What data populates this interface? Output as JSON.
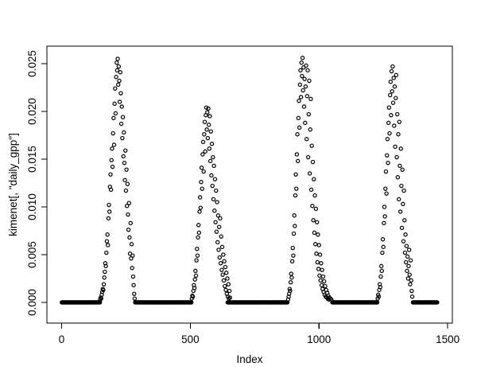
{
  "figure": {
    "background_color": "#ffffff",
    "frame_color": "#000000",
    "point_color": "#000000"
  },
  "chart_data": {
    "type": "scatter",
    "title": "",
    "xlabel": "Index",
    "ylabel": "kimenet[, \"daily_gpp\"]",
    "marker": "open-circle",
    "grid": false,
    "legend": false,
    "x_ticks": [
      0,
      500,
      1000,
      1500
    ],
    "x_tick_labels": [
      "0",
      "500",
      "1000",
      "1500"
    ],
    "y_ticks": [
      0.0,
      0.005,
      0.01,
      0.015,
      0.02,
      0.025
    ],
    "y_tick_labels": [
      "0.000",
      "0.005",
      "0.010",
      "0.015",
      "0.020",
      "0.025"
    ],
    "xlim": [
      -57,
      1518
    ],
    "ylim": [
      -0.00217,
      0.02683
    ],
    "index_range": [
      1,
      1460
    ],
    "zero_value": 0.0,
    "zero_run_step": 2,
    "zero_runs": [
      [
        1,
        149
      ],
      [
        286,
        504
      ],
      [
        645,
        878
      ],
      [
        1052,
        1226
      ],
      [
        1365,
        1460
      ]
    ],
    "points": [
      [
        150,
        0.0003
      ],
      [
        152,
        0.0005
      ],
      [
        154,
        0.0004
      ],
      [
        156,
        0.0008
      ],
      [
        158,
        0.0011
      ],
      [
        160,
        0.0014
      ],
      [
        162,
        0.0013
      ],
      [
        164,
        0.0019
      ],
      [
        166,
        0.0026
      ],
      [
        168,
        0.0032
      ],
      [
        170,
        0.0041
      ],
      [
        172,
        0.0038
      ],
      [
        174,
        0.0052
      ],
      [
        176,
        0.0064
      ],
      [
        178,
        0.0071
      ],
      [
        180,
        0.006
      ],
      [
        182,
        0.0088
      ],
      [
        184,
        0.0102
      ],
      [
        186,
        0.0095
      ],
      [
        188,
        0.0121
      ],
      [
        190,
        0.0134
      ],
      [
        192,
        0.0118
      ],
      [
        194,
        0.0149
      ],
      [
        196,
        0.0161
      ],
      [
        198,
        0.0142
      ],
      [
        200,
        0.0177
      ],
      [
        202,
        0.0193
      ],
      [
        204,
        0.0165
      ],
      [
        206,
        0.0208
      ],
      [
        208,
        0.0224
      ],
      [
        210,
        0.0198
      ],
      [
        212,
        0.0236
      ],
      [
        214,
        0.0251
      ],
      [
        216,
        0.0243
      ],
      [
        218,
        0.0255
      ],
      [
        220,
        0.0228
      ],
      [
        222,
        0.0247
      ],
      [
        224,
        0.0232
      ],
      [
        226,
        0.021
      ],
      [
        228,
        0.0241
      ],
      [
        230,
        0.0219
      ],
      [
        232,
        0.0187
      ],
      [
        234,
        0.0205
      ],
      [
        236,
        0.0172
      ],
      [
        238,
        0.0194
      ],
      [
        240,
        0.0153
      ],
      [
        242,
        0.0178
      ],
      [
        244,
        0.0146
      ],
      [
        246,
        0.0128
      ],
      [
        248,
        0.0159
      ],
      [
        250,
        0.0117
      ],
      [
        252,
        0.0139
      ],
      [
        254,
        0.0101
      ],
      [
        256,
        0.0124
      ],
      [
        258,
        0.0092
      ],
      [
        260,
        0.0076
      ],
      [
        262,
        0.0104
      ],
      [
        264,
        0.0068
      ],
      [
        266,
        0.0051
      ],
      [
        268,
        0.0083
      ],
      [
        270,
        0.0046
      ],
      [
        272,
        0.0061
      ],
      [
        274,
        0.0036
      ],
      [
        276,
        0.0049
      ],
      [
        278,
        0.0027
      ],
      [
        280,
        0.0018
      ],
      [
        282,
        0.0009
      ],
      [
        284,
        0.0004
      ],
      [
        506,
        0.0004
      ],
      [
        508,
        0.0007
      ],
      [
        510,
        0.0006
      ],
      [
        512,
        0.0012
      ],
      [
        514,
        0.0018
      ],
      [
        516,
        0.0015
      ],
      [
        518,
        0.0024
      ],
      [
        520,
        0.0033
      ],
      [
        522,
        0.0028
      ],
      [
        524,
        0.0044
      ],
      [
        526,
        0.0056
      ],
      [
        528,
        0.0049
      ],
      [
        530,
        0.0068
      ],
      [
        532,
        0.0081
      ],
      [
        534,
        0.0073
      ],
      [
        536,
        0.0095
      ],
      [
        538,
        0.011
      ],
      [
        540,
        0.0099
      ],
      [
        542,
        0.0126
      ],
      [
        544,
        0.0141
      ],
      [
        546,
        0.0119
      ],
      [
        548,
        0.0155
      ],
      [
        550,
        0.0168
      ],
      [
        552,
        0.0137
      ],
      [
        554,
        0.0176
      ],
      [
        556,
        0.0189
      ],
      [
        558,
        0.0158
      ],
      [
        560,
        0.0196
      ],
      [
        562,
        0.0204
      ],
      [
        564,
        0.0181
      ],
      [
        566,
        0.0199
      ],
      [
        568,
        0.0172
      ],
      [
        570,
        0.0203
      ],
      [
        572,
        0.0186
      ],
      [
        574,
        0.0161
      ],
      [
        576,
        0.0195
      ],
      [
        578,
        0.0148
      ],
      [
        580,
        0.0179
      ],
      [
        582,
        0.0133
      ],
      [
        584,
        0.0166
      ],
      [
        586,
        0.0122
      ],
      [
        588,
        0.0152
      ],
      [
        590,
        0.0108
      ],
      [
        592,
        0.0143
      ],
      [
        594,
        0.0096
      ],
      [
        596,
        0.0129
      ],
      [
        598,
        0.0084
      ],
      [
        600,
        0.0117
      ],
      [
        602,
        0.0074
      ],
      [
        604,
        0.0105
      ],
      [
        606,
        0.0063
      ],
      [
        608,
        0.0091
      ],
      [
        610,
        0.0055
      ],
      [
        612,
        0.0079
      ],
      [
        614,
        0.0047
      ],
      [
        616,
        0.0088
      ],
      [
        618,
        0.0041
      ],
      [
        620,
        0.0069
      ],
      [
        622,
        0.0034
      ],
      [
        624,
        0.0058
      ],
      [
        626,
        0.0029
      ],
      [
        628,
        0.005
      ],
      [
        630,
        0.0023
      ],
      [
        632,
        0.0043
      ],
      [
        634,
        0.0017
      ],
      [
        636,
        0.0037
      ],
      [
        638,
        0.0013
      ],
      [
        640,
        0.0031
      ],
      [
        642,
        0.0009
      ],
      [
        644,
        0.0025
      ],
      [
        646,
        0.0006
      ],
      [
        648,
        0.0019
      ],
      [
        650,
        0.0004
      ],
      [
        652,
        0.0012
      ],
      [
        654,
        0.0005
      ],
      [
        880,
        0.0003
      ],
      [
        882,
        0.0006
      ],
      [
        884,
        0.0009
      ],
      [
        886,
        0.0014
      ],
      [
        888,
        0.0012
      ],
      [
        890,
        0.0021
      ],
      [
        892,
        0.003
      ],
      [
        894,
        0.0026
      ],
      [
        896,
        0.0043
      ],
      [
        898,
        0.0057
      ],
      [
        900,
        0.0049
      ],
      [
        902,
        0.0072
      ],
      [
        904,
        0.0091
      ],
      [
        906,
        0.008
      ],
      [
        908,
        0.0112
      ],
      [
        910,
        0.0134
      ],
      [
        912,
        0.0119
      ],
      [
        914,
        0.0155
      ],
      [
        916,
        0.0176
      ],
      [
        918,
        0.0148
      ],
      [
        920,
        0.0193
      ],
      [
        922,
        0.0211
      ],
      [
        924,
        0.0183
      ],
      [
        926,
        0.0228
      ],
      [
        928,
        0.0243
      ],
      [
        930,
        0.0215
      ],
      [
        932,
        0.0251
      ],
      [
        934,
        0.0237
      ],
      [
        936,
        0.0256
      ],
      [
        938,
        0.0222
      ],
      [
        940,
        0.0246
      ],
      [
        942,
        0.0205
      ],
      [
        944,
        0.0234
      ],
      [
        946,
        0.0188
      ],
      [
        948,
        0.0226
      ],
      [
        950,
        0.0248
      ],
      [
        952,
        0.0171
      ],
      [
        954,
        0.0216
      ],
      [
        956,
        0.0243
      ],
      [
        958,
        0.0152
      ],
      [
        960,
        0.0197
      ],
      [
        962,
        0.0232
      ],
      [
        964,
        0.0135
      ],
      [
        966,
        0.0181
      ],
      [
        968,
        0.0213
      ],
      [
        970,
        0.0118
      ],
      [
        972,
        0.0164
      ],
      [
        974,
        0.0101
      ],
      [
        976,
        0.0147
      ],
      [
        978,
        0.0086
      ],
      [
        980,
        0.0129
      ],
      [
        982,
        0.0073
      ],
      [
        984,
        0.0112
      ],
      [
        986,
        0.0061
      ],
      [
        988,
        0.0098
      ],
      [
        990,
        0.0051
      ],
      [
        992,
        0.0084
      ],
      [
        994,
        0.0042
      ],
      [
        996,
        0.0071
      ],
      [
        998,
        0.0035
      ],
      [
        1000,
        0.006
      ],
      [
        1002,
        0.0028
      ],
      [
        1004,
        0.005
      ],
      [
        1006,
        0.0023
      ],
      [
        1008,
        0.0041
      ],
      [
        1010,
        0.0018
      ],
      [
        1012,
        0.0034
      ],
      [
        1014,
        0.0014
      ],
      [
        1016,
        0.0027
      ],
      [
        1018,
        0.0011
      ],
      [
        1020,
        0.0022
      ],
      [
        1022,
        0.0008
      ],
      [
        1024,
        0.0017
      ],
      [
        1026,
        0.0006
      ],
      [
        1028,
        0.0013
      ],
      [
        1030,
        0.0005
      ],
      [
        1032,
        0.001
      ],
      [
        1034,
        0.0004
      ],
      [
        1036,
        0.0007
      ],
      [
        1038,
        0.0003
      ],
      [
        1040,
        0.0005
      ],
      [
        1044,
        0.0004
      ],
      [
        1048,
        0.0003
      ],
      [
        1228,
        0.0004
      ],
      [
        1230,
        0.0008
      ],
      [
        1232,
        0.0006
      ],
      [
        1234,
        0.0013
      ],
      [
        1236,
        0.0019
      ],
      [
        1238,
        0.0016
      ],
      [
        1240,
        0.0027
      ],
      [
        1242,
        0.0038
      ],
      [
        1244,
        0.0033
      ],
      [
        1246,
        0.0052
      ],
      [
        1248,
        0.0066
      ],
      [
        1250,
        0.0058
      ],
      [
        1252,
        0.0083
      ],
      [
        1254,
        0.01
      ],
      [
        1256,
        0.009
      ],
      [
        1258,
        0.0119
      ],
      [
        1260,
        0.0137
      ],
      [
        1262,
        0.0114
      ],
      [
        1264,
        0.0154
      ],
      [
        1266,
        0.0171
      ],
      [
        1268,
        0.0146
      ],
      [
        1270,
        0.0188
      ],
      [
        1272,
        0.0204
      ],
      [
        1274,
        0.0177
      ],
      [
        1276,
        0.0217
      ],
      [
        1278,
        0.0231
      ],
      [
        1280,
        0.0196
      ],
      [
        1282,
        0.0242
      ],
      [
        1284,
        0.0221
      ],
      [
        1286,
        0.0247
      ],
      [
        1288,
        0.0209
      ],
      [
        1290,
        0.0235
      ],
      [
        1292,
        0.0185
      ],
      [
        1294,
        0.0226
      ],
      [
        1296,
        0.0163
      ],
      [
        1298,
        0.0214
      ],
      [
        1300,
        0.0238
      ],
      [
        1302,
        0.0152
      ],
      [
        1304,
        0.0197
      ],
      [
        1306,
        0.0131
      ],
      [
        1308,
        0.0176
      ],
      [
        1310,
        0.0108
      ],
      [
        1312,
        0.0189
      ],
      [
        1314,
        0.0143
      ],
      [
        1316,
        0.0095
      ],
      [
        1318,
        0.0161
      ],
      [
        1320,
        0.0122
      ],
      [
        1322,
        0.0078
      ],
      [
        1324,
        0.0139
      ],
      [
        1326,
        0.0103
      ],
      [
        1328,
        0.0064
      ],
      [
        1330,
        0.0117
      ],
      [
        1332,
        0.0086
      ],
      [
        1334,
        0.0052
      ],
      [
        1336,
        0.0071
      ],
      [
        1338,
        0.0042
      ],
      [
        1340,
        0.0059
      ],
      [
        1342,
        0.0033
      ],
      [
        1344,
        0.0048
      ],
      [
        1346,
        0.0025
      ],
      [
        1348,
        0.0038
      ],
      [
        1350,
        0.0055
      ],
      [
        1352,
        0.0029
      ],
      [
        1354,
        0.0019
      ],
      [
        1356,
        0.0044
      ],
      [
        1358,
        0.0023
      ],
      [
        1360,
        0.0012
      ],
      [
        1362,
        0.0006
      ]
    ]
  }
}
